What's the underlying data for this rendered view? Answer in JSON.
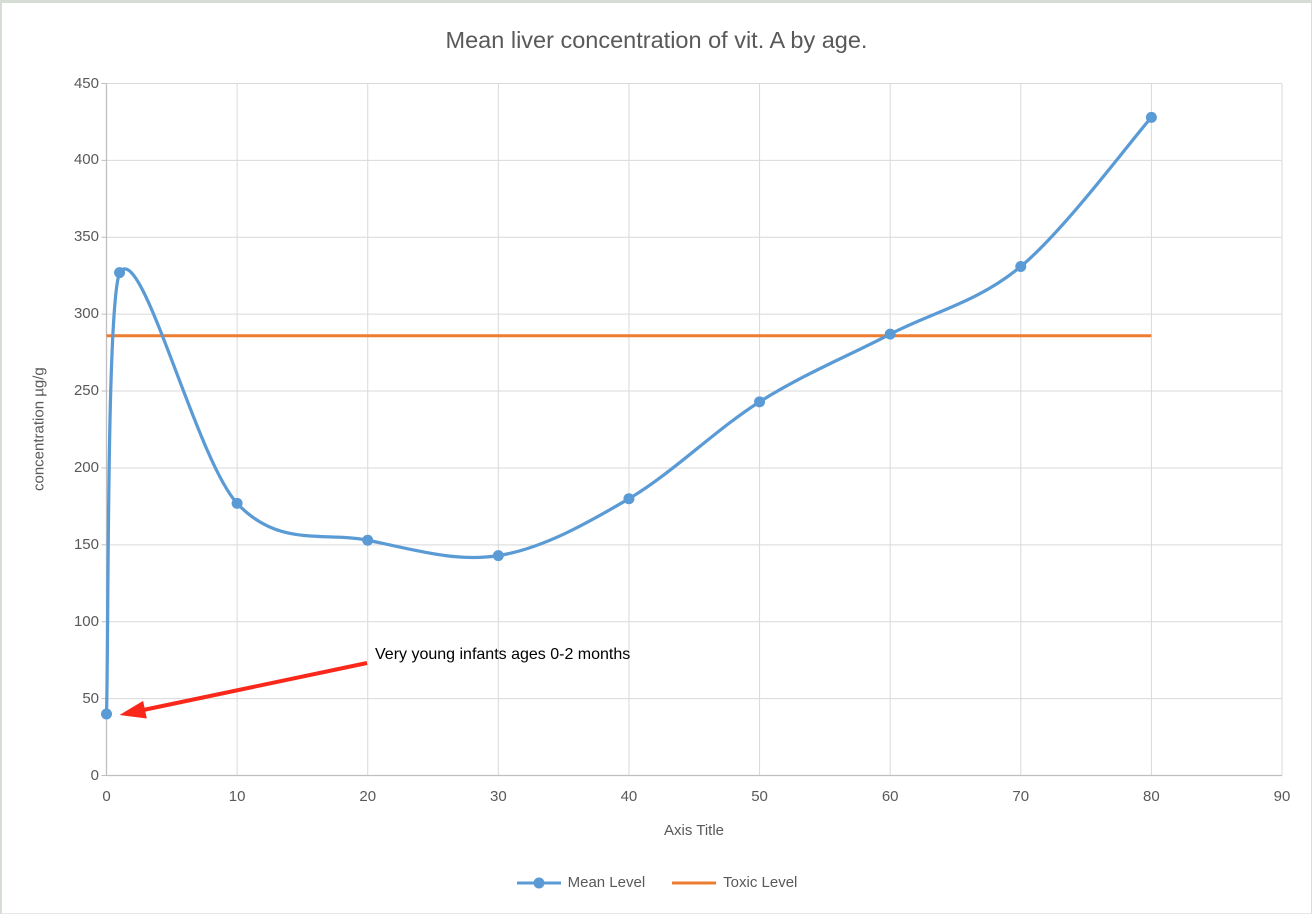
{
  "window": {
    "background": "#ffffff",
    "border_color": "#d5ddd5"
  },
  "chart_data": {
    "type": "line",
    "title": "Mean liver concentration of vit. A by age.",
    "xlabel": "Axis Title",
    "ylabel": "concentration µg/g",
    "xlim": [
      0,
      90
    ],
    "ylim": [
      0,
      450
    ],
    "x_ticks": [
      0,
      10,
      20,
      30,
      40,
      50,
      60,
      70,
      80,
      90
    ],
    "y_ticks": [
      0,
      50,
      100,
      150,
      200,
      250,
      300,
      350,
      400,
      450
    ],
    "grid": true,
    "legend_position": "bottom",
    "x": [
      0,
      1,
      10,
      20,
      30,
      40,
      50,
      60,
      70,
      80
    ],
    "series": [
      {
        "name": "Mean Level",
        "type": "smooth-line",
        "color": "#5B9BD5",
        "marker": "circle",
        "values": [
          40,
          327,
          177,
          153,
          143,
          180,
          243,
          287,
          331,
          428
        ]
      },
      {
        "name": "Toxic Level",
        "type": "horizontal-line",
        "color": "#ED7D31",
        "value": 286,
        "x_start": 0,
        "x_end": 80
      }
    ],
    "annotation": {
      "text": "Very young infants ages 0-2 months",
      "text_color": "#000000",
      "arrow_color": "#fa281a",
      "points_to": {
        "x": 0,
        "y": 40
      }
    },
    "style": {
      "text_color": "#595959",
      "gridline_color": "#D9D9D9",
      "axis_color": "#BFBFBF"
    }
  }
}
